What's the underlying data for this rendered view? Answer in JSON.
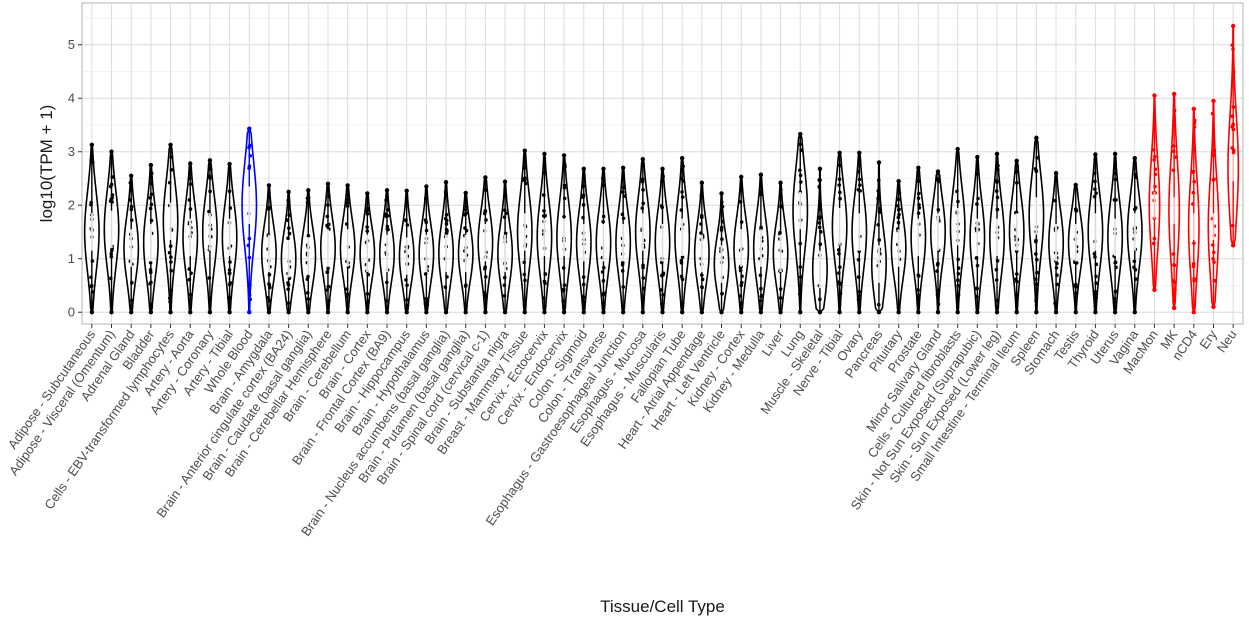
{
  "chart_data": {
    "type": "violin",
    "xlabel": "Tissue/Cell Type",
    "ylabel": "log10(TPM + 1)",
    "ylim": [
      -0.22,
      5.78
    ],
    "yticks": [
      0,
      1,
      2,
      3,
      4,
      5
    ],
    "grid": true,
    "legend": "none",
    "colors": {
      "default": "#000000",
      "whole_blood": "#0000ff",
      "cell_types": "#ff0000"
    },
    "categories": [
      {
        "name": "Adipose - Subcutaneous",
        "max": 3.13,
        "median": 1.5,
        "color": "default"
      },
      {
        "name": "Adipose - Visceral (Omentum)",
        "max": 3.0,
        "median": 1.55,
        "color": "default"
      },
      {
        "name": "Adrenal Gland",
        "max": 2.55,
        "median": 1.2,
        "color": "default"
      },
      {
        "name": "Bladder",
        "max": 2.75,
        "median": 1.3,
        "color": "default"
      },
      {
        "name": "Cells - EBV-transformed lymphocytes",
        "max": 3.13,
        "median": 1.7,
        "color": "default"
      },
      {
        "name": "Artery - Aorta",
        "max": 2.78,
        "median": 1.4,
        "color": "default"
      },
      {
        "name": "Artery - Coronary",
        "max": 2.84,
        "median": 1.5,
        "color": "default"
      },
      {
        "name": "Artery - Tibial",
        "max": 2.77,
        "median": 1.4,
        "color": "default"
      },
      {
        "name": "Whole Blood",
        "max": 3.43,
        "median": 2.0,
        "color": "whole_blood"
      },
      {
        "name": "Brain - Amygdala",
        "max": 2.37,
        "median": 1.1,
        "color": "default"
      },
      {
        "name": "Brain - Anterior cingulate cortex (BA24)",
        "max": 2.25,
        "median": 1.0,
        "color": "default"
      },
      {
        "name": "Brain - Caudate (basal ganglia)",
        "max": 2.28,
        "median": 1.05,
        "color": "default"
      },
      {
        "name": "Brain - Cerebellar Hemisphere",
        "max": 2.4,
        "median": 1.2,
        "color": "default"
      },
      {
        "name": "Brain - Cerebellum",
        "max": 2.37,
        "median": 1.2,
        "color": "default"
      },
      {
        "name": "Brain - Cortex",
        "max": 2.22,
        "median": 1.1,
        "color": "default"
      },
      {
        "name": "Brain - Frontal Cortex (BA9)",
        "max": 2.28,
        "median": 1.1,
        "color": "default"
      },
      {
        "name": "Brain - Hippocampus",
        "max": 2.27,
        "median": 1.05,
        "color": "default"
      },
      {
        "name": "Brain - Hypothalamus",
        "max": 2.35,
        "median": 1.1,
        "color": "default"
      },
      {
        "name": "Brain - Nucleus accumbens (basal ganglia)",
        "max": 2.43,
        "median": 1.1,
        "color": "default"
      },
      {
        "name": "Brain - Putamen (basal ganglia)",
        "max": 2.23,
        "median": 1.1,
        "color": "default"
      },
      {
        "name": "Brain - Spinal cord (cervical c-1)",
        "max": 2.52,
        "median": 1.3,
        "color": "default"
      },
      {
        "name": "Brain - Substantia nigra",
        "max": 2.44,
        "median": 1.1,
        "color": "default"
      },
      {
        "name": "Breast - Mammary Tissue",
        "max": 3.02,
        "median": 1.5,
        "color": "default"
      },
      {
        "name": "Cervix - Ectocervix",
        "max": 2.96,
        "median": 1.4,
        "color": "default"
      },
      {
        "name": "Cervix - Endocervix",
        "max": 2.93,
        "median": 1.4,
        "color": "default"
      },
      {
        "name": "Colon - Sigmoid",
        "max": 2.68,
        "median": 1.3,
        "color": "default"
      },
      {
        "name": "Colon - Transverse",
        "max": 2.68,
        "median": 1.3,
        "color": "default"
      },
      {
        "name": "Esophagus - Gastroesophageal Junction",
        "max": 2.7,
        "median": 1.3,
        "color": "default"
      },
      {
        "name": "Esophagus - Mucosa",
        "max": 2.86,
        "median": 1.5,
        "color": "default"
      },
      {
        "name": "Esophagus - Muscularis",
        "max": 2.68,
        "median": 1.3,
        "color": "default"
      },
      {
        "name": "Fallopian Tube",
        "max": 2.88,
        "median": 1.4,
        "color": "default"
      },
      {
        "name": "Heart - Atrial Appendage",
        "max": 2.42,
        "median": 1.1,
        "color": "default"
      },
      {
        "name": "Heart - Left Ventricle",
        "max": 2.22,
        "median": 0.9,
        "color": "default"
      },
      {
        "name": "Kidney - Cortex",
        "max": 2.53,
        "median": 1.2,
        "color": "default"
      },
      {
        "name": "Kidney - Medulla",
        "max": 2.57,
        "median": 1.2,
        "color": "default"
      },
      {
        "name": "Liver",
        "max": 2.42,
        "median": 1.1,
        "color": "default"
      },
      {
        "name": "Lung",
        "max": 3.33,
        "median": 1.9,
        "color": "default"
      },
      {
        "name": "Muscle - Skeletal",
        "max": 2.68,
        "median": 0.8,
        "color": "default"
      },
      {
        "name": "Nerve - Tibial",
        "max": 2.98,
        "median": 1.6,
        "color": "default"
      },
      {
        "name": "Ovary",
        "max": 2.98,
        "median": 1.5,
        "color": "default"
      },
      {
        "name": "Pancreas",
        "max": 2.8,
        "median": 0.9,
        "color": "default"
      },
      {
        "name": "Pituitary",
        "max": 2.45,
        "median": 1.2,
        "color": "default"
      },
      {
        "name": "Prostate",
        "max": 2.7,
        "median": 1.4,
        "color": "default"
      },
      {
        "name": "Minor Salivary Gland",
        "max": 2.63,
        "median": 1.5,
        "color": "default"
      },
      {
        "name": "Cells - Cultured fibroblasts",
        "max": 3.05,
        "median": 1.6,
        "color": "default"
      },
      {
        "name": "Skin - Not Sun Exposed (Suprapubic)",
        "max": 2.9,
        "median": 1.4,
        "color": "default"
      },
      {
        "name": "Skin - Sun Exposed (Lower leg)",
        "max": 2.96,
        "median": 1.4,
        "color": "default"
      },
      {
        "name": "Small Intestine - Terminal Ileum",
        "max": 2.83,
        "median": 1.5,
        "color": "default"
      },
      {
        "name": "Spleen",
        "max": 3.26,
        "median": 1.8,
        "color": "default"
      },
      {
        "name": "Stomach",
        "max": 2.6,
        "median": 1.3,
        "color": "default"
      },
      {
        "name": "Testis",
        "max": 2.38,
        "median": 1.3,
        "color": "default"
      },
      {
        "name": "Thyroid",
        "max": 2.95,
        "median": 1.5,
        "color": "default"
      },
      {
        "name": "Uterus",
        "max": 2.96,
        "median": 1.4,
        "color": "default"
      },
      {
        "name": "Vagina",
        "max": 2.88,
        "median": 1.5,
        "color": "default"
      },
      {
        "name": "MacMon",
        "max": 4.05,
        "median": 2.0,
        "color": "cell_types",
        "min": 0.42
      },
      {
        "name": "MK",
        "max": 4.08,
        "median": 1.9,
        "color": "cell_types",
        "min": 0.08
      },
      {
        "name": "nCD4",
        "max": 3.8,
        "median": 1.6,
        "color": "cell_types",
        "min": 0.0
      },
      {
        "name": "Ery",
        "max": 3.95,
        "median": 1.6,
        "color": "cell_types",
        "min": 0.1
      },
      {
        "name": "Neu",
        "max": 5.35,
        "median": 2.7,
        "color": "cell_types",
        "min": 1.25
      }
    ]
  }
}
